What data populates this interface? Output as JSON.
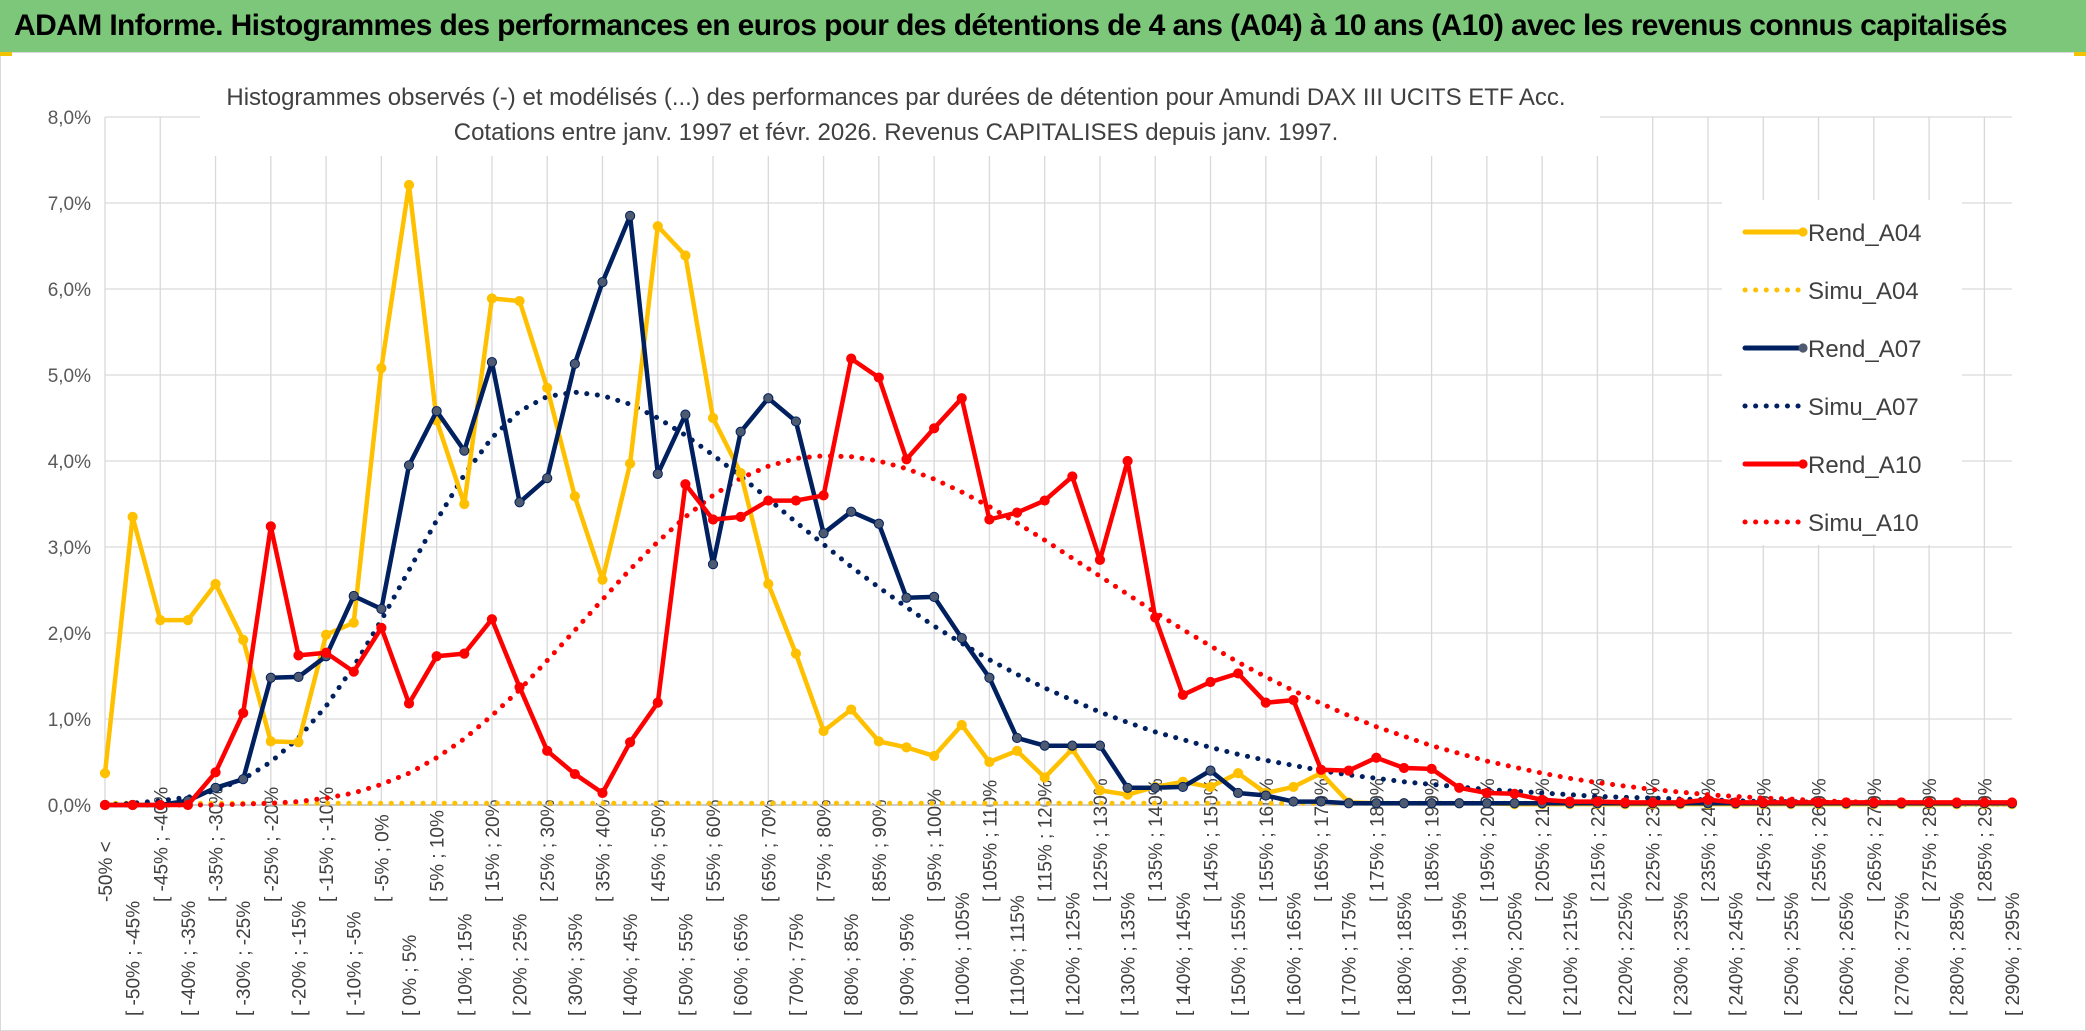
{
  "banner": {
    "title": "ADAM Informe. Histogrammes des performances en euros pour des détentions de 4 ans (A04) à 10 ans (A10) avec les revenus connus capitalisés"
  },
  "colors": {
    "banner_bg": "#7dc77b",
    "Rend_A04": "#ffc000",
    "Rend_A07": "#002060",
    "Rend_A10": "#ff0000",
    "marker_A07": "#4d5a70",
    "gridline": "#d9d9d9"
  },
  "chart_data": {
    "type": "line",
    "title_lines": [
      "Histogrammes observés (-) et modélisés (...) des performances par durées de détention pour Amundi DAX III UCITS ETF Acc.",
      "Cotations entre janv. 1997 et févr. 2026. Revenus CAPITALISES depuis janv. 1997."
    ],
    "ylim": [
      0,
      8
    ],
    "yticks": [
      "0,0%",
      "1,0%",
      "2,0%",
      "3,0%",
      "4,0%",
      "5,0%",
      "6,0%",
      "7,0%",
      "8,0%"
    ],
    "y_unit": "%",
    "grid": true,
    "legend_position": "top-right",
    "categories": [
      "-50% <",
      "[ -50% ; -45%",
      "[ -45% ; -40%",
      "[ -40% ; -35%",
      "[ -35% ; -30%",
      "[ -30% ; -25%",
      "[ -25% ; -20%",
      "[ -20% ; -15%",
      "[ -15% ; -10%",
      "[ -10% ; -5%",
      "[ -5% ; 0%",
      "[ 0% ; 5%",
      "[ 5% ; 10%",
      "[ 10% ; 15%",
      "[ 15% ; 20%",
      "[ 20% ; 25%",
      "[ 25% ; 30%",
      "[ 30% ; 35%",
      "[ 35% ; 40%",
      "[ 40% ; 45%",
      "[ 45% ; 50%",
      "[ 50% ; 55%",
      "[ 55% ; 60%",
      "[ 60% ; 65%",
      "[ 65% ; 70%",
      "[ 70% ; 75%",
      "[ 75% ; 80%",
      "[ 80% ; 85%",
      "[ 85% ; 90%",
      "[ 90% ; 95%",
      "[ 95% ; 100%",
      "[ 100% ; 105%",
      "[ 105% ; 110%",
      "[ 110% ; 115%",
      "[ 115% ; 120%",
      "[ 120% ; 125%",
      "[ 125% ; 130%",
      "[ 130% ; 135%",
      "[ 135% ; 140%",
      "[ 140% ; 145%",
      "[ 145% ; 150%",
      "[ 150% ; 155%",
      "[ 155% ; 160%",
      "[ 160% ; 165%",
      "[ 165% ; 170%",
      "[ 170% ; 175%",
      "[ 175% ; 180%",
      "[ 180% ; 185%",
      "[ 185% ; 190%",
      "[ 190% ; 195%",
      "[ 195% ; 200%",
      "[ 200% ; 205%",
      "[ 205% ; 210%",
      "[ 210% ; 215%",
      "[ 215% ; 220%",
      "[ 220% ; 225%",
      "[ 225% ; 230%",
      "[ 230% ; 235%",
      "[ 235% ; 240%",
      "[ 240% ; 245%",
      "[ 245% ; 250%",
      "[ 250% ; 255%",
      "[ 255% ; 260%",
      "[ 260% ; 265%",
      "[ 265% ; 270%",
      "[ 270% ; 275%",
      "[ 275% ; 280%",
      "[ 280% ; 285%",
      "[ 285% ; 290%",
      "[ 290% ; 295%"
    ],
    "series": [
      {
        "name": "Rend_A04",
        "style": "solid",
        "color": "#ffc000",
        "marker": true,
        "values": [
          0.37,
          3.35,
          2.15,
          2.15,
          2.57,
          1.92,
          0.74,
          0.73,
          1.98,
          2.12,
          5.08,
          7.21,
          4.47,
          3.5,
          5.89,
          5.86,
          4.85,
          3.59,
          2.62,
          3.97,
          6.73,
          6.39,
          4.5,
          3.86,
          2.57,
          1.76,
          0.86,
          1.11,
          0.74,
          0.67,
          0.57,
          0.93,
          0.5,
          0.63,
          0.32,
          0.65,
          0.17,
          0.12,
          0.21,
          0.27,
          0.21,
          0.37,
          0.14,
          0.21,
          0.37,
          0.03,
          0.02,
          0.02,
          0.02,
          0.02,
          0.02,
          0.01,
          0.01,
          0.01,
          0.01,
          0.01,
          0.01,
          0.01,
          0.01,
          0.01,
          0.01,
          0.01,
          0.01,
          0.01,
          0.01,
          0.01,
          0.01,
          0.01,
          0.01,
          0.01
        ]
      },
      {
        "name": "Simu_A04",
        "style": "dotted",
        "color": "#ffc000",
        "marker": false,
        "values": [
          0.02,
          0.02,
          0.02,
          0.02,
          0.02,
          0.02,
          0.02,
          0.02,
          0.02,
          0.02,
          0.02,
          0.02,
          0.02,
          0.02,
          0.02,
          0.02,
          0.02,
          0.02,
          0.02,
          0.02,
          0.02,
          0.02,
          0.02,
          0.02,
          0.02,
          0.02,
          0.02,
          0.02,
          0.02,
          0.02,
          0.02,
          0.02,
          0.02,
          0.02,
          0.02,
          0.02,
          0.02,
          0.02,
          0.02,
          0.02,
          0.02,
          0.02,
          0.02,
          0.02,
          0.02,
          0.02,
          0.02,
          0.02,
          0.02,
          0.02,
          0.02,
          0.02,
          0.02,
          0.02,
          0.02,
          0.02,
          0.02,
          0.02,
          0.02,
          0.02,
          0.02,
          0.02,
          0.02,
          0.02,
          0.02,
          0.02,
          0.02,
          0.02,
          0.02,
          0.02
        ]
      },
      {
        "name": "Rend_A07",
        "style": "solid",
        "color": "#002060",
        "marker": true,
        "values": [
          0.0,
          0.0,
          0.0,
          0.05,
          0.2,
          0.3,
          1.48,
          1.49,
          1.73,
          2.43,
          2.28,
          3.95,
          4.58,
          4.12,
          5.15,
          3.52,
          3.8,
          5.13,
          6.08,
          6.85,
          3.85,
          4.54,
          2.8,
          4.34,
          4.73,
          4.46,
          3.16,
          3.41,
          3.27,
          2.41,
          2.42,
          1.94,
          1.48,
          0.78,
          0.69,
          0.69,
          0.69,
          0.2,
          0.2,
          0.21,
          0.4,
          0.14,
          0.11,
          0.04,
          0.04,
          0.02,
          0.02,
          0.02,
          0.02,
          0.02,
          0.02,
          0.02,
          0.02,
          0.02,
          0.02,
          0.02,
          0.02,
          0.02,
          0.02,
          0.02,
          0.02,
          0.02,
          0.02,
          0.02,
          0.02,
          0.02,
          0.02,
          0.02,
          0.02,
          0.02
        ]
      },
      {
        "name": "Simu_A07",
        "style": "dotted",
        "color": "#002060",
        "marker": false,
        "values": [
          0.0,
          0.02,
          0.05,
          0.09,
          0.17,
          0.3,
          0.5,
          0.78,
          1.15,
          1.61,
          2.15,
          2.73,
          3.31,
          3.84,
          4.27,
          4.58,
          4.75,
          4.8,
          4.76,
          4.66,
          4.5,
          4.3,
          4.07,
          3.82,
          3.56,
          3.29,
          3.03,
          2.77,
          2.53,
          2.3,
          2.08,
          1.88,
          1.69,
          1.52,
          1.36,
          1.22,
          1.08,
          0.96,
          0.85,
          0.76,
          0.67,
          0.59,
          0.52,
          0.46,
          0.4,
          0.35,
          0.31,
          0.27,
          0.24,
          0.21,
          0.18,
          0.16,
          0.14,
          0.12,
          0.1,
          0.09,
          0.08,
          0.07,
          0.06,
          0.05,
          0.04,
          0.04,
          0.03,
          0.03,
          0.02,
          0.02,
          0.02,
          0.01,
          0.01,
          0.01
        ]
      },
      {
        "name": "Rend_A10",
        "style": "solid",
        "color": "#ff0000",
        "marker": true,
        "values": [
          0.0,
          0.0,
          0.0,
          0.0,
          0.38,
          1.07,
          3.24,
          1.74,
          1.77,
          1.55,
          2.06,
          1.18,
          1.73,
          1.76,
          2.16,
          1.37,
          0.63,
          0.36,
          0.14,
          0.73,
          1.19,
          3.73,
          3.32,
          3.35,
          3.54,
          3.54,
          3.6,
          5.19,
          4.97,
          4.02,
          4.38,
          4.73,
          3.32,
          3.4,
          3.54,
          3.82,
          2.85,
          4.0,
          2.18,
          1.28,
          1.43,
          1.53,
          1.19,
          1.22,
          0.41,
          0.4,
          0.55,
          0.43,
          0.42,
          0.2,
          0.14,
          0.13,
          0.06,
          0.04,
          0.04,
          0.03,
          0.03,
          0.03,
          0.06,
          0.03,
          0.03,
          0.03,
          0.03,
          0.03,
          0.03,
          0.03,
          0.03,
          0.03,
          0.03,
          0.03
        ]
      },
      {
        "name": "Simu_A10",
        "style": "dotted",
        "color": "#ff0000",
        "marker": false,
        "values": [
          0.0,
          0.0,
          0.0,
          0.0,
          0.0,
          0.01,
          0.02,
          0.04,
          0.08,
          0.14,
          0.24,
          0.37,
          0.55,
          0.77,
          1.04,
          1.34,
          1.68,
          2.03,
          2.39,
          2.74,
          3.06,
          3.35,
          3.6,
          3.8,
          3.94,
          4.03,
          4.06,
          4.05,
          4.0,
          3.91,
          3.79,
          3.64,
          3.47,
          3.28,
          3.08,
          2.87,
          2.66,
          2.45,
          2.24,
          2.04,
          1.85,
          1.66,
          1.49,
          1.33,
          1.18,
          1.04,
          0.91,
          0.8,
          0.69,
          0.6,
          0.51,
          0.44,
          0.37,
          0.31,
          0.26,
          0.22,
          0.18,
          0.15,
          0.12,
          0.1,
          0.08,
          0.07,
          0.05,
          0.04,
          0.03,
          0.03,
          0.02,
          0.02,
          0.01,
          0.01
        ]
      }
    ]
  }
}
